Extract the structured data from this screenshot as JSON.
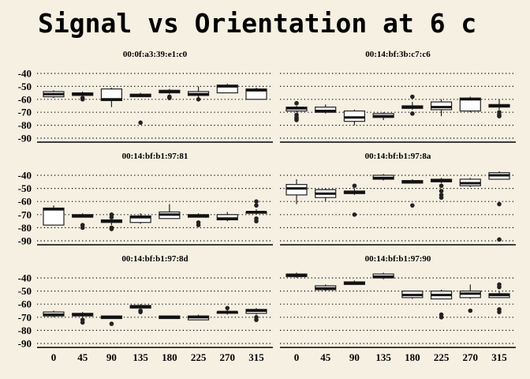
{
  "chart_data": {
    "type": "boxplot",
    "title": "Signal vs Orientation at 6 c",
    "x_ticks": [
      "0",
      "45",
      "90",
      "135",
      "180",
      "225",
      "270",
      "315"
    ],
    "y_ticks": [
      -40,
      -50,
      -60,
      -70,
      -80,
      -90
    ],
    "ylim": [
      -92,
      -37
    ],
    "grid": "horizontal-dotted",
    "panels": [
      {
        "label": "00:0f:a3:39:e1:c0",
        "boxes": [
          {
            "x": "0",
            "min": -59,
            "q1": -58,
            "median": -56,
            "q3": -54,
            "max": -53,
            "outliers": []
          },
          {
            "x": "45",
            "min": -58,
            "q1": -57,
            "median": -56,
            "q3": -55,
            "max": -54,
            "outliers": [
              -59,
              -60
            ]
          },
          {
            "x": "90",
            "min": -66,
            "q1": -61,
            "median": -60,
            "q3": -52,
            "max": -51,
            "outliers": []
          },
          {
            "x": "135",
            "min": -58,
            "q1": -58,
            "median": -57,
            "q3": -56,
            "max": -55,
            "outliers": [
              -78
            ]
          },
          {
            "x": "180",
            "min": -56,
            "q1": -55,
            "median": -54,
            "q3": -53,
            "max": -52,
            "outliers": [
              -58,
              -59
            ]
          },
          {
            "x": "225",
            "min": -61,
            "q1": -57,
            "median": -56,
            "q3": -54,
            "max": -50,
            "outliers": [
              -60
            ]
          },
          {
            "x": "270",
            "min": -55,
            "q1": -55,
            "median": -50,
            "q3": -49,
            "max": -48,
            "outliers": []
          },
          {
            "x": "315",
            "min": -60,
            "q1": -60,
            "median": -53,
            "q3": -52,
            "max": -51,
            "outliers": []
          }
        ]
      },
      {
        "label": "00:14:bf:3b:c7:c6",
        "boxes": [
          {
            "x": "0",
            "min": -70,
            "q1": -69,
            "median": -67,
            "q3": -66,
            "max": -65,
            "outliers": [
              -63,
              -72,
              -74,
              -75,
              -76
            ]
          },
          {
            "x": "45",
            "min": -71,
            "q1": -70,
            "median": -69,
            "q3": -66,
            "max": -64,
            "outliers": []
          },
          {
            "x": "90",
            "min": -80,
            "q1": -77,
            "median": -74,
            "q3": -69,
            "max": -68,
            "outliers": []
          },
          {
            "x": "135",
            "min": -76,
            "q1": -74,
            "median": -73,
            "q3": -71,
            "max": -70,
            "outliers": []
          },
          {
            "x": "180",
            "min": -68,
            "q1": -67,
            "median": -66,
            "q3": -65,
            "max": -62,
            "outliers": [
              -58,
              -71
            ]
          },
          {
            "x": "225",
            "min": -73,
            "q1": -68,
            "median": -66,
            "q3": -62,
            "max": -60,
            "outliers": []
          },
          {
            "x": "270",
            "min": -70,
            "q1": -69,
            "median": -60,
            "q3": -59,
            "max": -58,
            "outliers": []
          },
          {
            "x": "315",
            "min": -68,
            "q1": -66,
            "median": -65,
            "q3": -64,
            "max": -60,
            "outliers": [
              -70,
              -72,
              -73
            ]
          }
        ]
      },
      {
        "label": "00:14:bf:b1:97:81",
        "boxes": [
          {
            "x": "0",
            "min": -78,
            "q1": -78,
            "median": -66,
            "q3": -65,
            "max": -63,
            "outliers": []
          },
          {
            "x": "45",
            "min": -72,
            "q1": -72,
            "median": -71,
            "q3": -70,
            "max": -69,
            "outliers": [
              -78,
              -80
            ]
          },
          {
            "x": "90",
            "min": -78,
            "q1": -76,
            "median": -75,
            "q3": -74,
            "max": -72,
            "outliers": [
              -70,
              -72,
              -80,
              -81
            ]
          },
          {
            "x": "135",
            "min": -77,
            "q1": -76,
            "median": -72,
            "q3": -71,
            "max": -69,
            "outliers": []
          },
          {
            "x": "180",
            "min": -73,
            "q1": -73,
            "median": -70,
            "q3": -68,
            "max": -62,
            "outliers": []
          },
          {
            "x": "225",
            "min": -72,
            "q1": -72,
            "median": -71,
            "q3": -70,
            "max": -69,
            "outliers": [
              -76,
              -78
            ]
          },
          {
            "x": "270",
            "min": -75,
            "q1": -74,
            "median": -73,
            "q3": -70,
            "max": -68,
            "outliers": []
          },
          {
            "x": "315",
            "min": -70,
            "q1": -69,
            "median": -68,
            "q3": -68,
            "max": -66,
            "outliers": [
              -60,
              -63,
              -73,
              -75
            ]
          }
        ]
      },
      {
        "label": "00:14:bf:b1:97:8a",
        "boxes": [
          {
            "x": "0",
            "min": -62,
            "q1": -55,
            "median": -50,
            "q3": -47,
            "max": -43,
            "outliers": []
          },
          {
            "x": "45",
            "min": -60,
            "q1": -57,
            "median": -54,
            "q3": -51,
            "max": -50,
            "outliers": []
          },
          {
            "x": "90",
            "min": -55,
            "q1": -54,
            "median": -53,
            "q3": -52,
            "max": -50,
            "outliers": [
              -48,
              -70
            ]
          },
          {
            "x": "135",
            "min": -44,
            "q1": -43,
            "median": -42,
            "q3": -40,
            "max": -39,
            "outliers": []
          },
          {
            "x": "180",
            "min": -46,
            "q1": -46,
            "median": -45,
            "q3": -44,
            "max": -43,
            "outliers": [
              -63
            ]
          },
          {
            "x": "225",
            "min": -46,
            "q1": -45,
            "median": -44,
            "q3": -43,
            "max": -42,
            "outliers": [
              -48,
              -52,
              -55,
              -57
            ]
          },
          {
            "x": "270",
            "min": -49,
            "q1": -48,
            "median": -46,
            "q3": -43,
            "max": -42,
            "outliers": []
          },
          {
            "x": "315",
            "min": -43,
            "q1": -43,
            "median": -40,
            "q3": -38,
            "max": -37,
            "outliers": [
              -62,
              -89
            ]
          }
        ]
      },
      {
        "label": "00:14:bf:b1:97:8d",
        "boxes": [
          {
            "x": "0",
            "min": -70,
            "q1": -69,
            "median": -68,
            "q3": -66,
            "max": -65,
            "outliers": []
          },
          {
            "x": "45",
            "min": -70,
            "q1": -69,
            "median": -68,
            "q3": -67,
            "max": -66,
            "outliers": [
              -72,
              -74
            ]
          },
          {
            "x": "90",
            "min": -71,
            "q1": -71,
            "median": -70,
            "q3": -69,
            "max": -69,
            "outliers": [
              -75
            ]
          },
          {
            "x": "135",
            "min": -63,
            "q1": -63,
            "median": -62,
            "q3": -61,
            "max": -60,
            "outliers": [
              -65,
              -66
            ]
          },
          {
            "x": "180",
            "min": -71,
            "q1": -71,
            "median": -70,
            "q3": -69,
            "max": -69,
            "outliers": []
          },
          {
            "x": "225",
            "min": -72,
            "q1": -72,
            "median": -70,
            "q3": -69,
            "max": -68,
            "outliers": []
          },
          {
            "x": "270",
            "min": -68,
            "q1": -67,
            "median": -66,
            "q3": -66,
            "max": -62,
            "outliers": [
              -63
            ]
          },
          {
            "x": "315",
            "min": -68,
            "q1": -67,
            "median": -65,
            "q3": -64,
            "max": -63,
            "outliers": [
              -70,
              -72
            ]
          }
        ]
      },
      {
        "label": "00:14:bf:b1:97:90",
        "boxes": [
          {
            "x": "0",
            "min": -40,
            "q1": -39,
            "median": -38,
            "q3": -37,
            "max": -36,
            "outliers": []
          },
          {
            "x": "45",
            "min": -50,
            "q1": -49,
            "median": -48,
            "q3": -46,
            "max": -45,
            "outliers": []
          },
          {
            "x": "90",
            "min": -45,
            "q1": -45,
            "median": -44,
            "q3": -43,
            "max": -42,
            "outliers": []
          },
          {
            "x": "135",
            "min": -41,
            "q1": -40,
            "median": -39,
            "q3": -37,
            "max": -36,
            "outliers": []
          },
          {
            "x": "180",
            "min": -56,
            "q1": -55,
            "median": -53,
            "q3": -50,
            "max": -50,
            "outliers": []
          },
          {
            "x": "225",
            "min": -56,
            "q1": -56,
            "median": -53,
            "q3": -50,
            "max": -49,
            "outliers": [
              -68,
              -70
            ]
          },
          {
            "x": "270",
            "min": -56,
            "q1": -55,
            "median": -52,
            "q3": -50,
            "max": -45,
            "outliers": [
              -65
            ]
          },
          {
            "x": "315",
            "min": -55,
            "q1": -55,
            "median": -53,
            "q3": -52,
            "max": -50,
            "outliers": [
              -45,
              -47,
              -64,
              -66
            ]
          }
        ]
      }
    ]
  }
}
